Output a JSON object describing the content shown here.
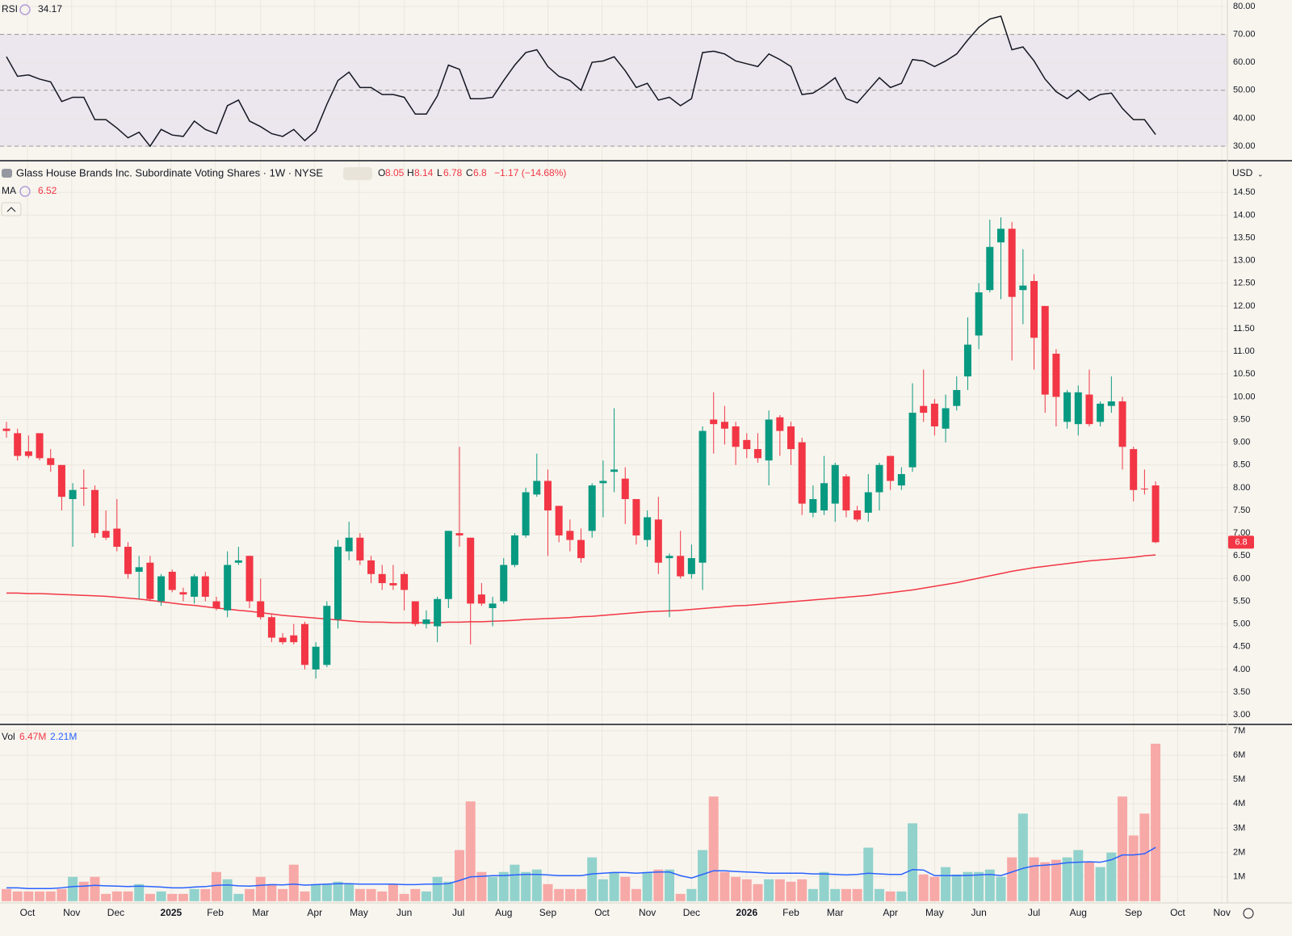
{
  "chart_data": [
    {
      "type": "line",
      "name": "RSI",
      "values": [
        62,
        55,
        55.5,
        54,
        53,
        46,
        47.5,
        47.5,
        39.5,
        39.5,
        36.5,
        33,
        35,
        30,
        36,
        34,
        33.5,
        39,
        36,
        34.5,
        44.5,
        46.5,
        39,
        37,
        34.5,
        33.5,
        36,
        32,
        35.5,
        45,
        53.5,
        56.5,
        51,
        51,
        48.5,
        48.5,
        47.5,
        41.5,
        41.5,
        48,
        59,
        57.5,
        47,
        47,
        47.5,
        53.5,
        59,
        63.5,
        64.5,
        58.5,
        55,
        53.5,
        50,
        60,
        60.5,
        62,
        57,
        51,
        52.5,
        46.5,
        47.5,
        44.5,
        47,
        63.5,
        64,
        63,
        60.5,
        59.5,
        58.5,
        63,
        61,
        58.5,
        48.5,
        49,
        51.5,
        54.5,
        47,
        45.5,
        50,
        54.5,
        51,
        52.5,
        61,
        60.5,
        58.5,
        60.5,
        63,
        68,
        72.5,
        75.5,
        76.5,
        64.5,
        65.5,
        60.5,
        54,
        49.5,
        47,
        50,
        46.5,
        48.5,
        49,
        43.5,
        39.5,
        39.5,
        34.17
      ],
      "color": "#131722",
      "band": [
        30,
        70
      ],
      "band_color": "#ece6ee",
      "levels": [
        30,
        50,
        70
      ],
      "ylim": [
        25.1,
        82.3
      ],
      "yticks": [
        {
          "value": 30,
          "label": "30.00"
        },
        {
          "value": 40,
          "label": "40.00"
        },
        {
          "value": 50,
          "label": "50.00"
        },
        {
          "value": 60,
          "label": "60.00"
        },
        {
          "value": 70,
          "label": "70.00"
        },
        {
          "value": 80,
          "label": "80.00"
        }
      ]
    },
    {
      "type": "candlestick",
      "title": "Glass House Brands Inc. Subordinate Voting Shares · 1W · NYSE",
      "ohlc_letters": [
        "O",
        "H",
        "L",
        "C"
      ],
      "change": "−1.17 (−14.68%)",
      "currency": "USD",
      "up_color": "#089981",
      "down_color": "#f23645",
      "open": [
        9.3,
        9.2,
        8.8,
        9.2,
        8.65,
        8.5,
        7.75,
        8.0,
        7.95,
        7.05,
        7.1,
        6.7,
        6.15,
        6.35,
        5.5,
        6.15,
        5.7,
        5.6,
        6.05,
        5.5,
        5.3,
        6.35,
        6.5,
        5.5,
        5.15,
        4.7,
        4.75,
        5.0,
        4.0,
        4.1,
        5.1,
        6.6,
        6.9,
        6.4,
        6.1,
        5.9,
        6.1,
        5.5,
        5.0,
        4.95,
        5.55,
        7.0,
        6.9,
        5.65,
        5.35,
        5.5,
        6.3,
        6.95,
        7.85,
        8.15,
        7.6,
        7.05,
        6.85,
        7.05,
        8.1,
        8.35,
        8.2,
        7.75,
        6.85,
        7.3,
        6.45,
        6.5,
        6.1,
        6.35,
        9.5,
        9.45,
        9.35,
        9.05,
        8.85,
        8.6,
        9.55,
        9.35,
        9.0,
        7.45,
        7.5,
        7.65,
        8.25,
        7.5,
        7.45,
        7.9,
        8.7,
        8.05,
        8.45,
        9.8,
        9.85,
        9.3,
        9.8,
        10.45,
        11.35,
        12.35,
        13.4,
        13.7,
        12.35,
        12.55,
        12.0,
        10.95,
        9.45,
        9.4,
        10.05,
        9.45,
        9.8,
        9.9,
        8.85,
        7.98,
        8.05
      ],
      "high": [
        9.45,
        9.3,
        9.15,
        9.2,
        8.85,
        8.5,
        8.1,
        8.4,
        8.05,
        7.5,
        7.75,
        6.8,
        6.5,
        6.5,
        6.1,
        6.2,
        5.8,
        6.1,
        6.15,
        5.6,
        6.6,
        6.7,
        6.5,
        6.0,
        5.2,
        4.8,
        5.0,
        5.05,
        4.6,
        5.5,
        6.85,
        7.25,
        7.0,
        6.5,
        6.3,
        6.3,
        6.15,
        5.5,
        5.3,
        5.6,
        7.05,
        8.9,
        6.9,
        5.9,
        5.6,
        6.45,
        7.0,
        8.0,
        8.75,
        8.4,
        7.6,
        7.3,
        7.1,
        8.1,
        8.6,
        9.75,
        8.45,
        7.75,
        7.5,
        7.8,
        6.55,
        7.05,
        6.75,
        9.35,
        10.1,
        9.8,
        9.45,
        9.2,
        9.2,
        9.7,
        9.6,
        9.45,
        9.1,
        8.05,
        8.7,
        8.55,
        8.3,
        7.6,
        8.3,
        8.55,
        8.7,
        8.45,
        10.3,
        10.6,
        9.95,
        10.05,
        10.45,
        11.75,
        12.5,
        13.9,
        13.95,
        13.85,
        13.25,
        12.7,
        12.0,
        11.05,
        10.15,
        10.25,
        10.6,
        9.9,
        10.45,
        10.0,
        8.9,
        8.4,
        8.14
      ],
      "low": [
        9.1,
        8.6,
        8.65,
        8.6,
        8.35,
        7.5,
        6.7,
        7.6,
        6.9,
        6.85,
        6.6,
        6.0,
        5.55,
        5.5,
        5.4,
        5.7,
        5.5,
        5.45,
        5.5,
        5.3,
        5.15,
        6.3,
        5.35,
        5.1,
        4.6,
        4.55,
        4.55,
        4.0,
        3.8,
        4.05,
        4.9,
        6.4,
        6.3,
        5.9,
        5.75,
        5.75,
        5.3,
        4.95,
        4.9,
        4.6,
        5.35,
        6.7,
        4.55,
        5.4,
        4.95,
        5.45,
        6.25,
        6.9,
        7.8,
        6.5,
        6.8,
        6.6,
        6.35,
        6.9,
        7.35,
        7.9,
        7.2,
        6.75,
        6.7,
        6.1,
        5.15,
        6.0,
        6.0,
        5.75,
        8.75,
        8.95,
        8.5,
        8.65,
        8.55,
        8.05,
        8.7,
        8.5,
        7.4,
        7.35,
        7.4,
        7.25,
        7.35,
        7.25,
        7.25,
        7.5,
        7.95,
        7.95,
        8.35,
        9.45,
        9.15,
        9.0,
        9.7,
        10.15,
        11.05,
        12.3,
        12.15,
        10.8,
        11.6,
        10.6,
        9.65,
        9.35,
        9.3,
        9.15,
        9.35,
        9.35,
        9.65,
        8.4,
        7.7,
        7.85,
        6.78
      ],
      "close": [
        9.25,
        8.7,
        8.7,
        8.65,
        8.5,
        7.8,
        7.95,
        7.98,
        7.0,
        6.9,
        6.7,
        6.1,
        6.25,
        5.55,
        6.05,
        5.75,
        5.65,
        6.05,
        5.6,
        5.35,
        6.3,
        6.4,
        5.5,
        5.15,
        4.7,
        4.6,
        4.6,
        4.1,
        4.5,
        5.4,
        6.7,
        6.9,
        6.4,
        6.1,
        5.9,
        5.85,
        5.75,
        5.0,
        5.1,
        5.55,
        7.05,
        6.95,
        5.45,
        5.45,
        5.45,
        6.3,
        6.95,
        7.9,
        8.15,
        7.5,
        6.95,
        6.85,
        6.45,
        8.05,
        8.15,
        8.4,
        7.75,
        6.95,
        7.35,
        6.35,
        6.5,
        6.05,
        6.45,
        9.25,
        9.4,
        9.3,
        8.9,
        8.85,
        8.65,
        9.5,
        9.25,
        8.85,
        7.65,
        7.75,
        8.1,
        8.5,
        7.5,
        7.3,
        7.9,
        8.5,
        8.15,
        8.3,
        9.65,
        9.65,
        9.35,
        9.75,
        10.15,
        11.15,
        12.3,
        13.3,
        13.7,
        12.2,
        12.45,
        11.3,
        10.05,
        10.0,
        10.1,
        10.1,
        9.4,
        9.85,
        9.9,
        8.9,
        7.95,
        7.97,
        6.8
      ],
      "series": [
        {
          "name": "MA",
          "color": "#f23645",
          "values": [
            5.68,
            5.68,
            5.67,
            5.67,
            5.66,
            5.65,
            5.64,
            5.63,
            5.62,
            5.61,
            5.59,
            5.57,
            5.55,
            5.52,
            5.49,
            5.46,
            5.43,
            5.41,
            5.38,
            5.35,
            5.33,
            5.3,
            5.28,
            5.25,
            5.22,
            5.19,
            5.17,
            5.15,
            5.13,
            5.11,
            5.09,
            5.07,
            5.05,
            5.04,
            5.04,
            5.03,
            5.03,
            5.03,
            5.03,
            5.03,
            5.04,
            5.04,
            5.05,
            5.05,
            5.06,
            5.07,
            5.08,
            5.1,
            5.11,
            5.12,
            5.13,
            5.14,
            5.16,
            5.17,
            5.19,
            5.21,
            5.23,
            5.25,
            5.27,
            5.28,
            5.29,
            5.3,
            5.32,
            5.34,
            5.36,
            5.38,
            5.4,
            5.41,
            5.43,
            5.45,
            5.47,
            5.49,
            5.51,
            5.53,
            5.55,
            5.57,
            5.59,
            5.61,
            5.63,
            5.66,
            5.69,
            5.72,
            5.75,
            5.79,
            5.83,
            5.87,
            5.91,
            5.96,
            6.01,
            6.06,
            6.11,
            6.16,
            6.2,
            6.24,
            6.27,
            6.3,
            6.33,
            6.36,
            6.39,
            6.41,
            6.43,
            6.45,
            6.47,
            6.5,
            6.52
          ]
        }
      ],
      "ylim": [
        2.79,
        15.18
      ],
      "yticks": [
        {
          "value": 3,
          "label": "3.00"
        },
        {
          "value": 3.5,
          "label": "3.50"
        },
        {
          "value": 4,
          "label": "4.00"
        },
        {
          "value": 4.5,
          "label": "4.50"
        },
        {
          "value": 5,
          "label": "5.00"
        },
        {
          "value": 5.5,
          "label": "5.50"
        },
        {
          "value": 6,
          "label": "6.00"
        },
        {
          "value": 6.5,
          "label": "6.50"
        },
        {
          "value": 7,
          "label": "7.00"
        },
        {
          "value": 7.5,
          "label": "7.50"
        },
        {
          "value": 8,
          "label": "8.00"
        },
        {
          "value": 8.5,
          "label": "8.50"
        },
        {
          "value": 9,
          "label": "9.00"
        },
        {
          "value": 9.5,
          "label": "9.50"
        },
        {
          "value": 10,
          "label": "10.00"
        },
        {
          "value": 10.5,
          "label": "10.50"
        },
        {
          "value": 11,
          "label": "11.00"
        },
        {
          "value": 11.5,
          "label": "11.50"
        },
        {
          "value": 12,
          "label": "12.00"
        },
        {
          "value": 12.5,
          "label": "12.50"
        },
        {
          "value": 13,
          "label": "13.00"
        },
        {
          "value": 13.5,
          "label": "13.50"
        },
        {
          "value": 14,
          "label": "14.00"
        },
        {
          "value": 14.5,
          "label": "14.50"
        }
      ]
    },
    {
      "type": "bar",
      "name": "Vol",
      "up_color": "#92d2cc",
      "down_color": "#f7a9a7",
      "values": [
        0.5,
        0.4,
        0.4,
        0.4,
        0.4,
        0.5,
        1.0,
        0.8,
        1.0,
        0.3,
        0.4,
        0.4,
        0.7,
        0.3,
        0.4,
        0.3,
        0.3,
        0.5,
        0.5,
        1.2,
        0.9,
        0.3,
        0.5,
        1.0,
        0.7,
        0.5,
        1.5,
        0.4,
        0.7,
        0.7,
        0.8,
        0.7,
        0.5,
        0.5,
        0.4,
        0.7,
        0.3,
        0.5,
        0.4,
        1.0,
        0.8,
        2.1,
        4.1,
        1.2,
        1.0,
        1.2,
        1.5,
        1.2,
        1.3,
        0.7,
        0.5,
        0.5,
        0.5,
        1.8,
        0.9,
        1.2,
        1.0,
        0.5,
        1.2,
        1.3,
        1.3,
        0.3,
        0.5,
        2.1,
        4.3,
        1.2,
        1.0,
        0.9,
        0.7,
        0.9,
        0.9,
        0.8,
        0.9,
        0.5,
        1.2,
        0.5,
        0.5,
        0.5,
        2.2,
        0.5,
        0.4,
        0.4,
        3.2,
        1.1,
        1.0,
        1.4,
        1.1,
        1.2,
        1.2,
        1.3,
        1.0,
        1.8,
        3.6,
        1.8,
        1.6,
        1.7,
        1.8,
        2.1,
        1.6,
        1.4,
        2.0,
        4.3,
        2.7,
        3.6,
        6.47
      ],
      "value_label": "6.47M",
      "ma": {
        "color": "#2962ff",
        "value_label": "2.21M",
        "values": [
          0.55,
          0.55,
          0.52,
          0.52,
          0.52,
          0.55,
          0.6,
          0.62,
          0.65,
          0.63,
          0.62,
          0.6,
          0.62,
          0.6,
          0.58,
          0.55,
          0.55,
          0.58,
          0.6,
          0.65,
          0.67,
          0.63,
          0.62,
          0.65,
          0.68,
          0.67,
          0.7,
          0.66,
          0.68,
          0.7,
          0.72,
          0.72,
          0.7,
          0.7,
          0.7,
          0.7,
          0.68,
          0.68,
          0.7,
          0.7,
          0.72,
          0.85,
          1.0,
          1.02,
          1.05,
          1.05,
          1.08,
          1.1,
          1.1,
          1.08,
          1.05,
          1.05,
          1.05,
          1.12,
          1.15,
          1.18,
          1.18,
          1.15,
          1.18,
          1.2,
          1.2,
          1.05,
          0.95,
          1.1,
          1.25,
          1.25,
          1.22,
          1.2,
          1.18,
          1.15,
          1.15,
          1.15,
          1.15,
          1.12,
          1.12,
          1.1,
          1.08,
          1.1,
          1.15,
          1.12,
          1.1,
          1.1,
          1.3,
          1.28,
          1.05,
          1.05,
          1.05,
          1.06,
          1.08,
          1.1,
          1.05,
          1.2,
          1.35,
          1.45,
          1.48,
          1.52,
          1.58,
          1.6,
          1.62,
          1.6,
          1.7,
          1.9,
          1.9,
          1.95,
          2.21
        ]
      },
      "ylim": [
        -0.07,
        7.23
      ],
      "yticks": [
        {
          "value": 1,
          "label": "1M"
        },
        {
          "value": 2,
          "label": "2M"
        },
        {
          "value": 3,
          "label": "3M"
        },
        {
          "value": 4,
          "label": "4M"
        },
        {
          "value": 5,
          "label": "5M"
        },
        {
          "value": 6,
          "label": "6M"
        },
        {
          "value": 7,
          "label": "7M"
        }
      ],
      "xlim": [
        -0.585,
        110.5
      ],
      "xticks": [
        {
          "value": 1.9,
          "label": "Oct"
        },
        {
          "value": 5.9,
          "label": "Nov"
        },
        {
          "value": 9.9,
          "label": "Dec"
        },
        {
          "value": 14.9,
          "label": "2025",
          "bold": true
        },
        {
          "value": 18.9,
          "label": "Feb"
        },
        {
          "value": 23,
          "label": "Mar"
        },
        {
          "value": 27.9,
          "label": "Apr"
        },
        {
          "value": 31.9,
          "label": "May"
        },
        {
          "value": 36,
          "label": "Jun"
        },
        {
          "value": 40.9,
          "label": "Jul"
        },
        {
          "value": 45,
          "label": "Aug"
        },
        {
          "value": 49,
          "label": "Sep"
        },
        {
          "value": 53.9,
          "label": "Oct"
        },
        {
          "value": 58,
          "label": "Nov"
        },
        {
          "value": 62,
          "label": "Dec"
        },
        {
          "value": 67,
          "label": "2026",
          "bold": true
        },
        {
          "value": 71,
          "label": "Feb"
        },
        {
          "value": 75,
          "label": "Mar"
        },
        {
          "value": 80,
          "label": "Apr"
        },
        {
          "value": 84,
          "label": "May"
        },
        {
          "value": 88,
          "label": "Jun"
        },
        {
          "value": 93,
          "label": "Jul"
        },
        {
          "value": 97,
          "label": "Aug"
        },
        {
          "value": 102,
          "label": "Sep"
        },
        {
          "value": 106,
          "label": "Oct"
        },
        {
          "value": 110,
          "label": "Nov"
        }
      ]
    }
  ]
}
